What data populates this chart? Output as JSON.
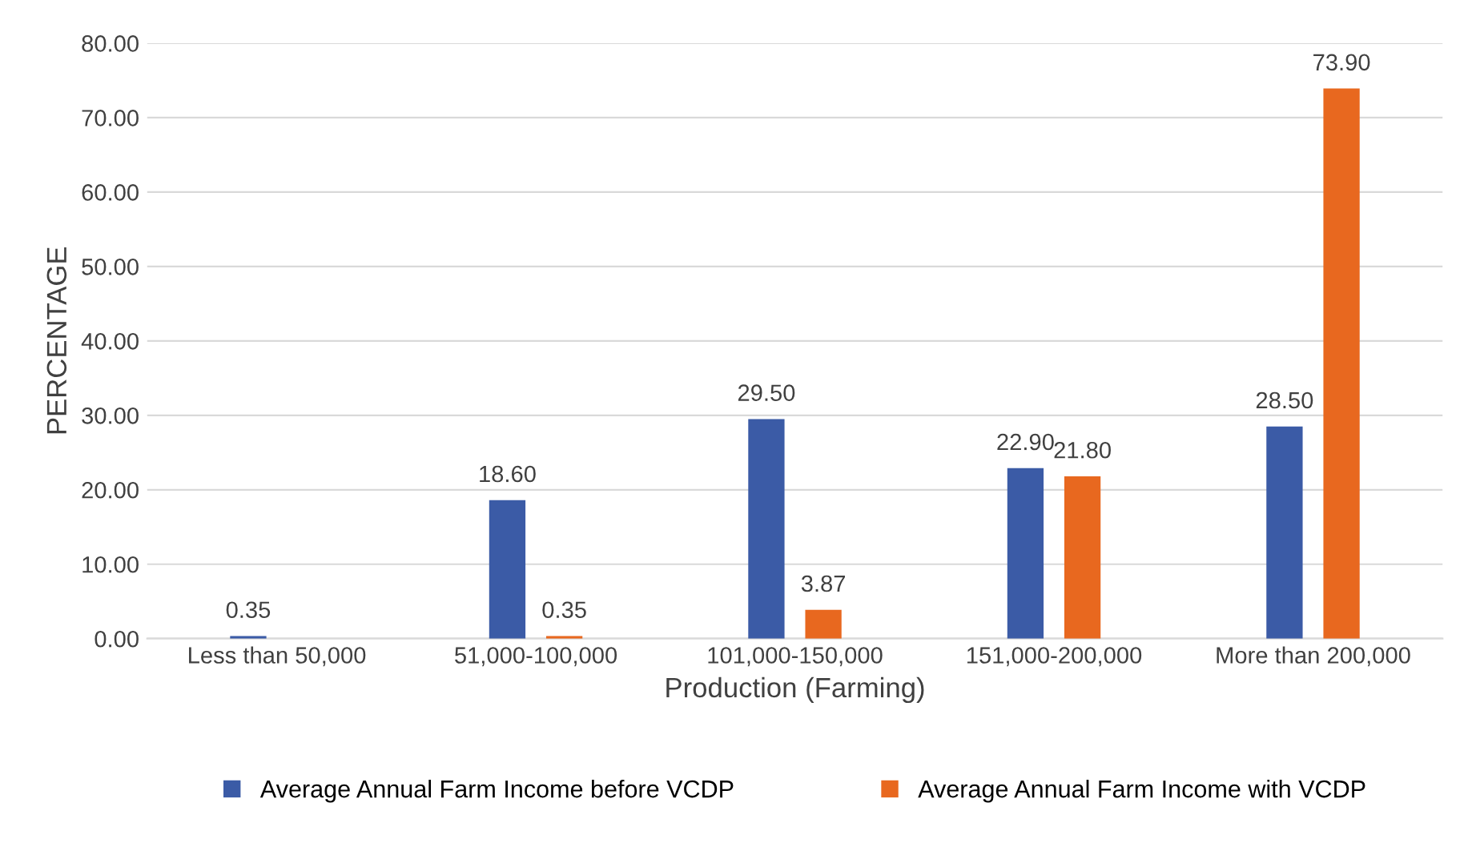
{
  "chart_data": {
    "type": "bar",
    "xlabel": "Production (Farming)",
    "ylabel": "PERCENTAGE",
    "categories": [
      "Less than 50,000",
      "51,000-100,000",
      "101,000-150,000",
      "151,000-200,000",
      "More than 200,000"
    ],
    "series": [
      {
        "name": "Average Annual Farm Income before VCDP",
        "color": "#3b5ba6",
        "values": [
          0.35,
          18.6,
          29.5,
          22.9,
          28.5
        ],
        "value_labels": [
          "0.35",
          "18.60",
          "29.50",
          "22.90",
          "28.50"
        ]
      },
      {
        "name": "Average Annual Farm Income with VCDP",
        "color": "#e8681f",
        "values": [
          null,
          0.35,
          3.87,
          21.8,
          73.9
        ],
        "value_labels": [
          null,
          "0.35",
          "3.87",
          "21.80",
          "73.90"
        ]
      }
    ],
    "ylim": [
      0,
      80
    ],
    "yticks": [
      {
        "value": 0,
        "label": "0.00"
      },
      {
        "value": 10,
        "label": "10.00"
      },
      {
        "value": 20,
        "label": "20.00"
      },
      {
        "value": 30,
        "label": "30.00"
      },
      {
        "value": 40,
        "label": "40.00"
      },
      {
        "value": 50,
        "label": "50.00"
      },
      {
        "value": 60,
        "label": "60.00"
      },
      {
        "value": 70,
        "label": "70.00"
      },
      {
        "value": 80,
        "label": "80.00"
      }
    ],
    "grid": "y",
    "legend": "bottom"
  }
}
